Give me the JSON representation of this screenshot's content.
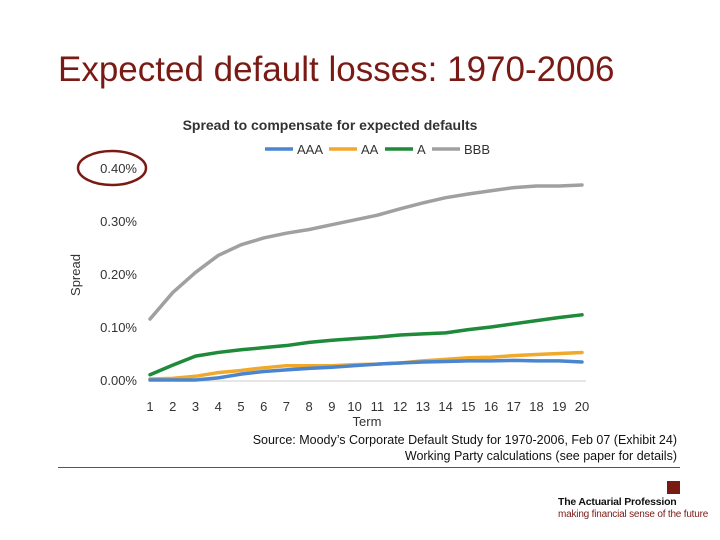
{
  "slide": {
    "title": "Expected default losses: 1970-2006",
    "source_line1": "Source: Moody’s Corporate Default Study for 1970-2006, Feb 07 (Exhibit 24)",
    "source_line2": "Working Party calculations (see paper for details)"
  },
  "logo": {
    "name": "The Actuarial Profession",
    "tagline": "making financial sense of the future",
    "color": "#7a1a14"
  },
  "colors": {
    "title": "#7a1a14",
    "highlight_circle": "#7a1a14",
    "axis_text": "#333333"
  },
  "chart_data": {
    "type": "line",
    "title": "Spread to compensate for expected defaults",
    "xlabel": "Term",
    "ylabel": "Spread",
    "x": [
      1,
      2,
      3,
      4,
      5,
      6,
      7,
      8,
      9,
      10,
      11,
      12,
      13,
      14,
      15,
      16,
      17,
      18,
      19,
      20
    ],
    "ylim": [
      0,
      0.4
    ],
    "yticks": [
      0.0,
      0.1,
      0.2,
      0.3,
      0.4
    ],
    "ytick_labels": [
      "0.00%",
      "0.10%",
      "0.20%",
      "0.30%",
      "0.40%"
    ],
    "highlighted_tick": "0.40%",
    "legend_position": "top",
    "series": [
      {
        "name": "AAA",
        "color": "#4a86d0",
        "values": [
          0.0,
          0.0,
          0.0,
          0.004,
          0.011,
          0.016,
          0.019,
          0.022,
          0.024,
          0.027,
          0.03,
          0.032,
          0.034,
          0.035,
          0.036,
          0.036,
          0.037,
          0.036,
          0.036,
          0.034
        ]
      },
      {
        "name": "AA",
        "color": "#f0a92a",
        "values": [
          0.002,
          0.003,
          0.007,
          0.014,
          0.018,
          0.023,
          0.027,
          0.027,
          0.027,
          0.029,
          0.03,
          0.032,
          0.036,
          0.039,
          0.042,
          0.043,
          0.046,
          0.048,
          0.05,
          0.052
        ]
      },
      {
        "name": "A",
        "color": "#1e8a3a",
        "values": [
          0.01,
          0.028,
          0.045,
          0.052,
          0.057,
          0.061,
          0.065,
          0.071,
          0.075,
          0.078,
          0.081,
          0.085,
          0.087,
          0.089,
          0.095,
          0.1,
          0.106,
          0.112,
          0.118,
          0.123
        ]
      },
      {
        "name": "BBB",
        "color": "#a0a0a0",
        "values": [
          0.115,
          0.165,
          0.203,
          0.235,
          0.255,
          0.268,
          0.277,
          0.284,
          0.293,
          0.302,
          0.311,
          0.323,
          0.334,
          0.344,
          0.351,
          0.357,
          0.363,
          0.366,
          0.366,
          0.368
        ]
      }
    ]
  }
}
